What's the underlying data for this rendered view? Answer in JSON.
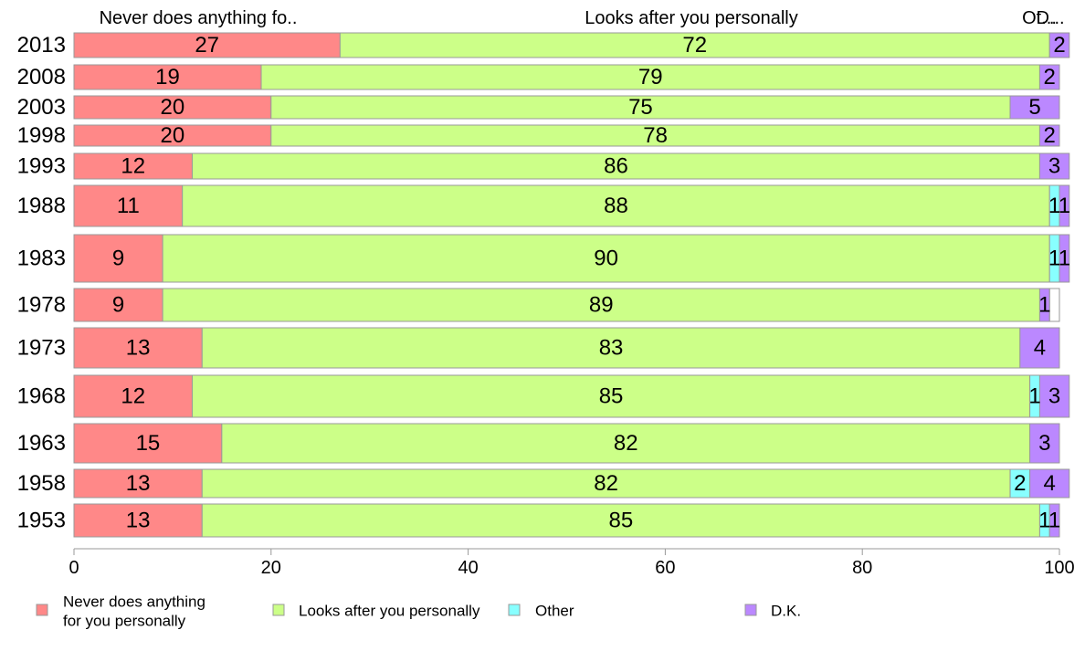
{
  "chart_data": {
    "type": "bar",
    "orientation": "horizontal",
    "stacked": true,
    "categories": [
      "2013",
      "2008",
      "2003",
      "1998",
      "1993",
      "1988",
      "1983",
      "1978",
      "1973",
      "1968",
      "1963",
      "1958",
      "1953"
    ],
    "series": [
      {
        "name": "Never does anything for you personally",
        "color": "#ff8888",
        "values": [
          27,
          19,
          20,
          20,
          12,
          11,
          9,
          9,
          13,
          12,
          15,
          13,
          13
        ]
      },
      {
        "name": "Looks after you personally",
        "color": "#ccff88",
        "values": [
          72,
          79,
          75,
          78,
          86,
          88,
          90,
          89,
          83,
          85,
          82,
          82,
          85
        ]
      },
      {
        "name": "Other",
        "color": "#88ffff",
        "values": [
          0,
          0,
          0,
          0,
          0,
          1,
          1,
          0,
          0,
          1,
          0,
          2,
          1
        ]
      },
      {
        "name": "D.K.",
        "color": "#bb88ff",
        "values": [
          2,
          2,
          5,
          2,
          3,
          1,
          1,
          1,
          4,
          3,
          3,
          4,
          1
        ]
      }
    ],
    "column_headers": [
      "Never does anything fo..",
      "Looks after you personally",
      "Ot...",
      "D..."
    ],
    "xlim": [
      0,
      100
    ],
    "xticks": [
      "0",
      "20",
      "40",
      "60",
      "80",
      "100"
    ],
    "legend": {
      "placement": "bottom",
      "labels": [
        "Never does anything",
        "for you personally",
        "Looks after you personally",
        "Other",
        "D.K."
      ]
    },
    "bar_border_color": "#999999"
  }
}
